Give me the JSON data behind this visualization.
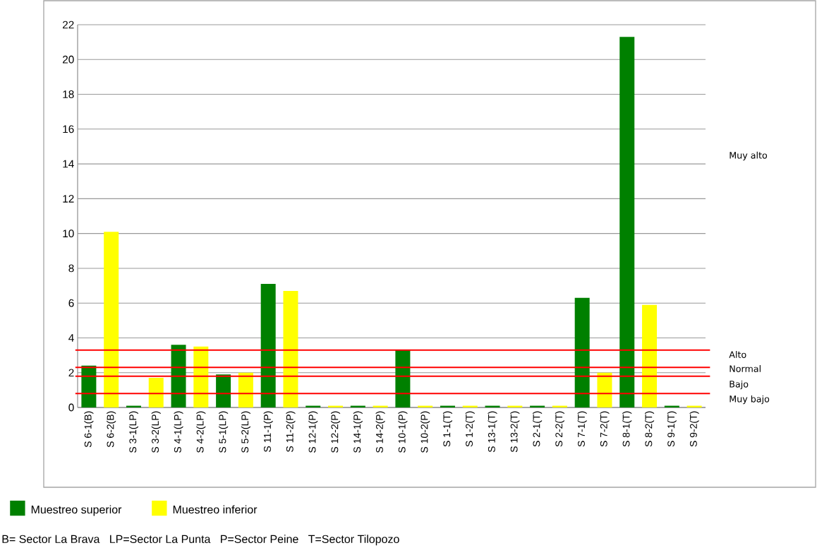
{
  "chart_data": {
    "type": "bar",
    "categories": [
      "S 6-1(B)",
      "S 6-2(B)",
      "S 3-1(LP)",
      "S 3-2(LP)",
      "S 4-1(LP)",
      "S 4-2(LP)",
      "S 5-1(LP)",
      "S 5-2(LP)",
      "S 11-1(P)",
      "S 11-2(P)",
      "S 12-1(P)",
      "S 12-2(P)",
      "S 14-1(P)",
      "S 14-2(P)",
      "S 10-1(P)",
      "S 10-2(P)",
      "S 1-1(T)",
      "S 1-2(T)",
      "S 13-1(T)",
      "S 13-2(T)",
      "S 2-1(T)",
      "S 2-2(T)",
      "S 7-1(T)",
      "S 7-2(T)",
      "S 8-1(T)",
      "S 8-2(T)",
      "S 9-1(T)",
      "S 9-2(T)"
    ],
    "series": [
      {
        "name": "Muestreo superior",
        "color": "#008000",
        "values": [
          2.4,
          null,
          0.1,
          null,
          3.6,
          null,
          1.9,
          null,
          7.1,
          null,
          0.1,
          null,
          0.1,
          null,
          3.3,
          null,
          0.1,
          null,
          0.1,
          null,
          0.1,
          null,
          6.3,
          null,
          21.3,
          null,
          0.1,
          null
        ]
      },
      {
        "name": "Muestreo inferior",
        "color": "#ffff00",
        "values": [
          null,
          10.1,
          null,
          1.7,
          null,
          3.5,
          null,
          2.0,
          null,
          6.7,
          null,
          0.1,
          null,
          0.1,
          null,
          0.1,
          null,
          0.1,
          null,
          0.1,
          null,
          0.1,
          null,
          2.0,
          null,
          5.9,
          null,
          0.1
        ]
      }
    ],
    "ylim": [
      0,
      22
    ],
    "yticks": [
      0,
      2,
      4,
      6,
      8,
      10,
      12,
      14,
      16,
      18,
      20,
      22
    ],
    "grid": "y",
    "legend": "bottom",
    "ref_lines": [
      {
        "axis": "y",
        "value": 3.3,
        "color": "#ff0000"
      },
      {
        "axis": "y",
        "value": 2.3,
        "color": "#ff0000"
      },
      {
        "axis": "y",
        "value": 1.8,
        "color": "#ff0000"
      },
      {
        "axis": "y",
        "value": 0.8,
        "color": "#ff0000"
      }
    ],
    "annotations": [
      "Muy alto",
      "Alto",
      "Normal",
      "Bajo",
      "Muy bajo",
      "B= Sector La Brava   LP=Sector La Punta   P=Sector Peine   T=Sector Tilopozo"
    ]
  }
}
